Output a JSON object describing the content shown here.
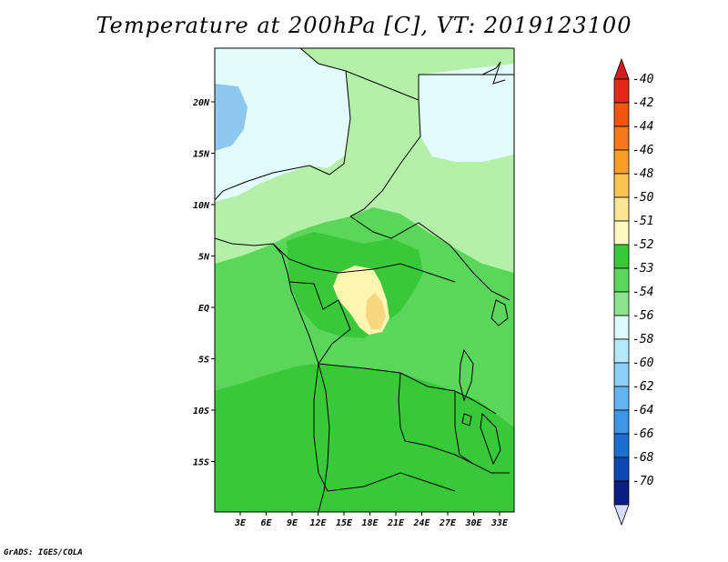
{
  "title": "Temperature at 200hPa [C], VT: 2019123100",
  "credit": "GrADS: IGES/COLA",
  "map": {
    "lon_labels": [
      "3E",
      "6E",
      "9E",
      "12E",
      "15E",
      "18E",
      "21E",
      "24E",
      "27E",
      "30E",
      "33E"
    ],
    "lat_labels": [
      "20N",
      "15N",
      "10N",
      "5N",
      "EQ",
      "5S",
      "10S",
      "15S"
    ]
  },
  "colorbar": {
    "labels": [
      "-40",
      "-42",
      "-44",
      "-46",
      "-48",
      "-50",
      "-51",
      "-52",
      "-53",
      "-54",
      "-56",
      "-58",
      "-60",
      "-62",
      "-64",
      "-66",
      "-68",
      "-70"
    ],
    "colors": [
      "#e8261a",
      "#f25511",
      "#f7781a",
      "#f99f25",
      "#fbc454",
      "#fbe796",
      "#fdfbc2",
      "#39c839",
      "#5ad75a",
      "#8ee38e",
      "#dcfbfb",
      "#b4e8fb",
      "#8ccffa",
      "#64b4f2",
      "#3c96e8",
      "#1e6ed2",
      "#0f48b4",
      "#0c1e80"
    ],
    "top_arrow_color": "#d21e1e",
    "bottom_arrow_color": "#d8dcf8"
  },
  "palette": {
    "band_m51": "#fdf6b0",
    "band_m50": "#f8d67e",
    "band_m52": "#39c839",
    "band_m53": "#5ad75a",
    "band_m54": "#b4f0a8",
    "band_m55": "#e2fbfb",
    "band_m56": "#8fc8ef"
  }
}
